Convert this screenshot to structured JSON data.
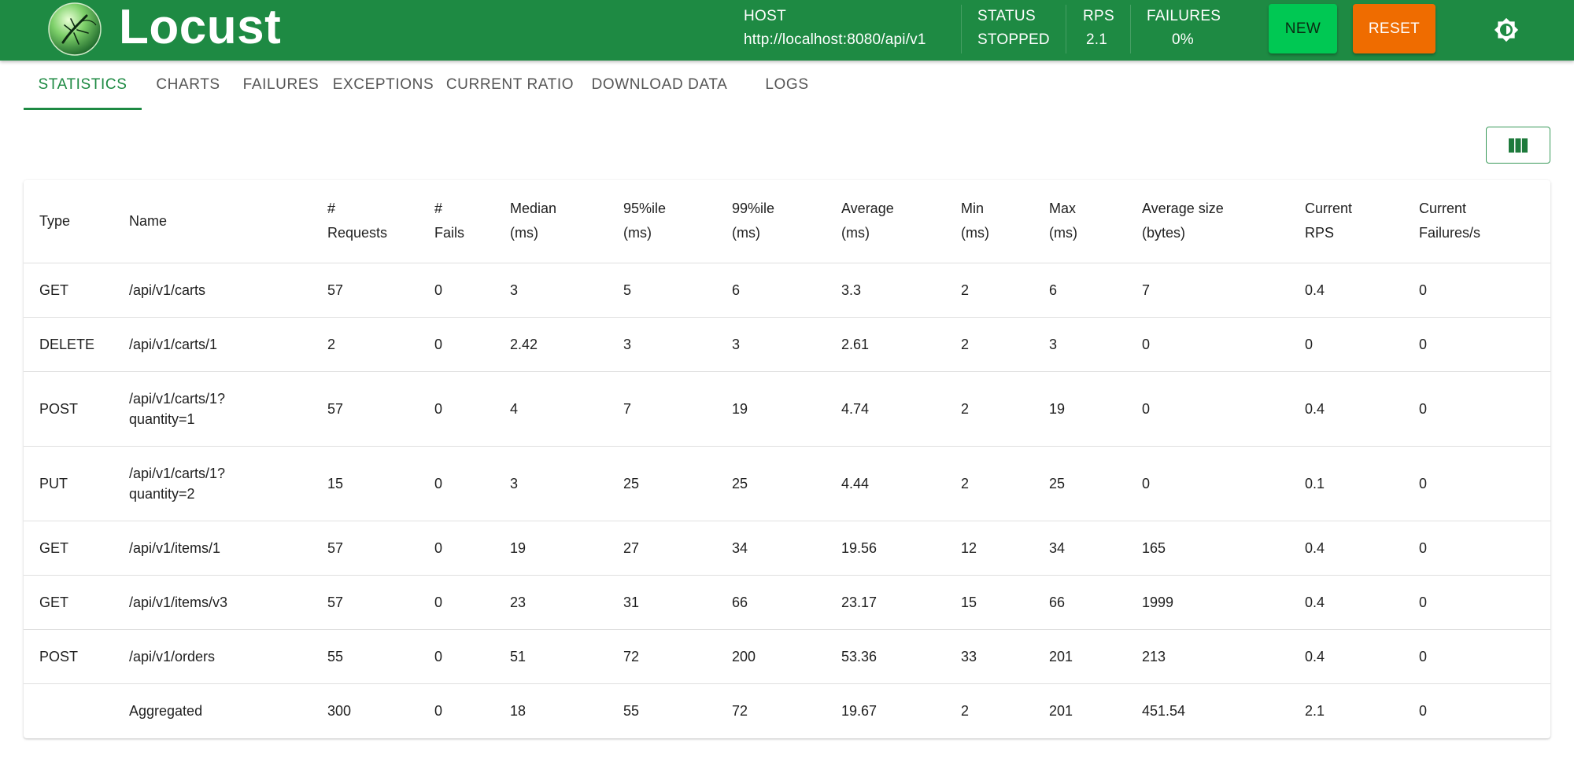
{
  "app": {
    "title": "Locust",
    "logo_icon": "locust-logo-icon"
  },
  "header": {
    "host": {
      "label": "HOST",
      "value": "http://localhost:8080/api/v1"
    },
    "status": {
      "label": "STATUS",
      "value": "STOPPED"
    },
    "rps": {
      "label": "RPS",
      "value": "2.1"
    },
    "failures": {
      "label": "FAILURES",
      "value": "0%"
    },
    "new_label": "NEW",
    "reset_label": "RESET",
    "theme_icon": "brightness-icon"
  },
  "tabs": [
    {
      "label": "STATISTICS",
      "active": true
    },
    {
      "label": "CHARTS"
    },
    {
      "label": "FAILURES"
    },
    {
      "label": "EXCEPTIONS"
    },
    {
      "label": "CURRENT RATIO"
    },
    {
      "label": "DOWNLOAD DATA"
    },
    {
      "label": "LOGS"
    }
  ],
  "columns_button_icon": "view-columns-icon",
  "table": {
    "headers": [
      [
        "Type"
      ],
      [
        "Name"
      ],
      [
        "#",
        "Requests"
      ],
      [
        "#",
        "Fails"
      ],
      [
        "Median",
        "(ms)"
      ],
      [
        "95%ile",
        "(ms)"
      ],
      [
        "99%ile",
        "(ms)"
      ],
      [
        "Average",
        "(ms)"
      ],
      [
        "Min",
        "(ms)"
      ],
      [
        "Max",
        "(ms)"
      ],
      [
        "Average size",
        "(bytes)"
      ],
      [
        "Current",
        "RPS"
      ],
      [
        "Current",
        "Failures/s"
      ]
    ],
    "rows": [
      [
        "GET",
        "/api/v1/carts",
        "57",
        "0",
        "3",
        "5",
        "6",
        "3.3",
        "2",
        "6",
        "7",
        "0.4",
        "0"
      ],
      [
        "DELETE",
        "/api/v1/carts/1",
        "2",
        "0",
        "2.42",
        "3",
        "3",
        "2.61",
        "2",
        "3",
        "0",
        "0",
        "0"
      ],
      [
        "POST",
        "/api/v1/carts/1?\nquantity=1",
        "57",
        "0",
        "4",
        "7",
        "19",
        "4.74",
        "2",
        "19",
        "0",
        "0.4",
        "0"
      ],
      [
        "PUT",
        "/api/v1/carts/1?\nquantity=2",
        "15",
        "0",
        "3",
        "25",
        "25",
        "4.44",
        "2",
        "25",
        "0",
        "0.1",
        "0"
      ],
      [
        "GET",
        "/api/v1/items/1",
        "57",
        "0",
        "19",
        "27",
        "34",
        "19.56",
        "12",
        "34",
        "165",
        "0.4",
        "0"
      ],
      [
        "GET",
        "/api/v1/items/v3",
        "57",
        "0",
        "23",
        "31",
        "66",
        "23.17",
        "15",
        "66",
        "1999",
        "0.4",
        "0"
      ],
      [
        "POST",
        "/api/v1/orders",
        "55",
        "0",
        "51",
        "72",
        "200",
        "53.36",
        "33",
        "201",
        "213",
        "0.4",
        "0"
      ],
      [
        "",
        "Aggregated",
        "300",
        "0",
        "18",
        "55",
        "72",
        "19.67",
        "2",
        "201",
        "451.54",
        "2.1",
        "0"
      ]
    ]
  },
  "colors": {
    "brand": "#1e8a43",
    "new_button": "#00c853",
    "reset_button": "#ef6c00"
  }
}
